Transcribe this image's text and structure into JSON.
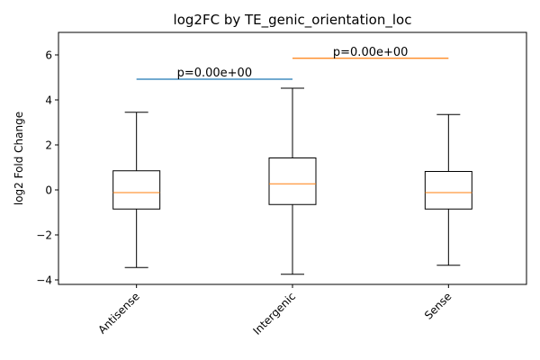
{
  "chart_data": {
    "type": "box",
    "title": "log2FC by TE_genic_orientation_loc",
    "xlabel": "",
    "ylabel": "log2 Fold Change",
    "ylim": [
      -4.2,
      7.0
    ],
    "yticks": [
      -4,
      -2,
      0,
      2,
      4,
      6
    ],
    "ytick_labels": [
      "−4",
      "−2",
      "0",
      "2",
      "4",
      "6"
    ],
    "categories": [
      "Antisense",
      "Intergenic",
      "Sense"
    ],
    "boxes": [
      {
        "category": "Antisense",
        "whisker_low": -3.45,
        "q1": -0.85,
        "median": -0.12,
        "q3": 0.85,
        "whisker_high": 3.45
      },
      {
        "category": "Intergenic",
        "whisker_low": -3.75,
        "q1": -0.65,
        "median": 0.27,
        "q3": 1.42,
        "whisker_high": 4.52
      },
      {
        "category": "Sense",
        "whisker_low": -3.35,
        "q1": -0.85,
        "median": -0.12,
        "q3": 0.82,
        "whisker_high": 3.35
      }
    ],
    "comparisons": [
      {
        "from": "Antisense",
        "to": "Intergenic",
        "y": 4.92,
        "label": "p=0.00e+00",
        "color": "#1f77b4"
      },
      {
        "from": "Intergenic",
        "to": "Sense",
        "y": 5.85,
        "label": "p=0.00e+00",
        "color": "#ff7f0e"
      }
    ],
    "median_color": "#ff7f0e",
    "grid": false,
    "legend": "none"
  }
}
